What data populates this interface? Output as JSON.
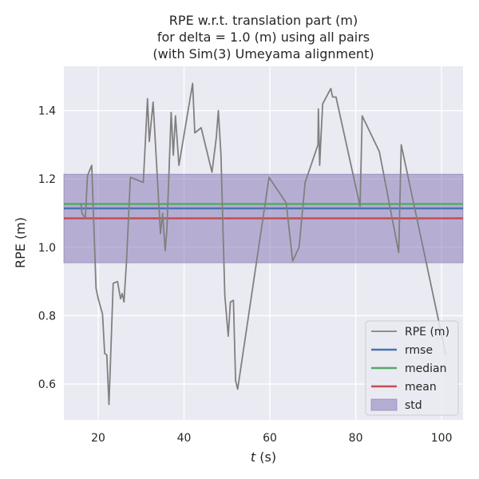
{
  "chart_data": {
    "type": "line",
    "title": [
      "RPE w.r.t. translation part (m)",
      "for delta = 1.0 (m) using all pairs",
      "(with Sim(3) Umeyama alignment)"
    ],
    "xlabel": "t (s)",
    "ylabel": "RPE (m)",
    "xlim": [
      12,
      105
    ],
    "ylim": [
      0.495,
      1.53
    ],
    "xticks": [
      20,
      40,
      60,
      80,
      100
    ],
    "yticks": [
      0.6,
      0.8,
      1.0,
      1.2,
      1.4
    ],
    "grid": true,
    "legend_position": "lower-right",
    "series": [
      {
        "name": "RPE (m)",
        "color": "#808080",
        "x": [
          16.0,
          16.2,
          17.0,
          17.5,
          18.5,
          19.5,
          20.0,
          21.0,
          21.5,
          22.0,
          22.5,
          23.5,
          24.5,
          25.2,
          25.6,
          26.0,
          26.6,
          27.5,
          30.5,
          31.5,
          31.9,
          32.8,
          34.5,
          35.0,
          35.6,
          36.0,
          37.0,
          37.5,
          38.0,
          38.8,
          42.0,
          42.5,
          44.0,
          46.5,
          47.5,
          48.0,
          48.6,
          49.5,
          50.3,
          50.8,
          51.5,
          52.0,
          52.5,
          59.8,
          63.8,
          65.3,
          66.8,
          68.2,
          71.2,
          71.3,
          71.6,
          71.9,
          72.3,
          74.2,
          74.6,
          75.4,
          81.0,
          81.5,
          85.5,
          90.0,
          90.6,
          101.0
        ],
        "y": [
          1.13,
          1.1,
          1.085,
          1.21,
          1.24,
          0.88,
          0.85,
          0.805,
          0.69,
          0.685,
          0.54,
          0.895,
          0.9,
          0.85,
          0.865,
          0.84,
          0.96,
          1.205,
          1.19,
          1.435,
          1.31,
          1.425,
          1.04,
          1.1,
          0.99,
          1.05,
          1.395,
          1.27,
          1.385,
          1.24,
          1.48,
          1.335,
          1.35,
          1.22,
          1.32,
          1.4,
          1.27,
          0.86,
          0.74,
          0.84,
          0.845,
          0.61,
          0.585,
          1.205,
          1.13,
          0.96,
          1.0,
          1.19,
          1.3,
          1.405,
          1.24,
          1.32,
          1.42,
          1.465,
          1.44,
          1.44,
          1.12,
          1.385,
          1.28,
          0.985,
          1.3,
          0.685
        ]
      },
      {
        "name": "rmse",
        "type": "hline",
        "value": 1.114,
        "color": "#4c72b0"
      },
      {
        "name": "median",
        "type": "hline",
        "value": 1.127,
        "color": "#55a868"
      },
      {
        "name": "mean",
        "type": "hline",
        "value": 1.085,
        "color": "#c44e52"
      },
      {
        "name": "std",
        "type": "band",
        "range": [
          0.955,
          1.214
        ],
        "color": "#8172b2"
      }
    ]
  }
}
